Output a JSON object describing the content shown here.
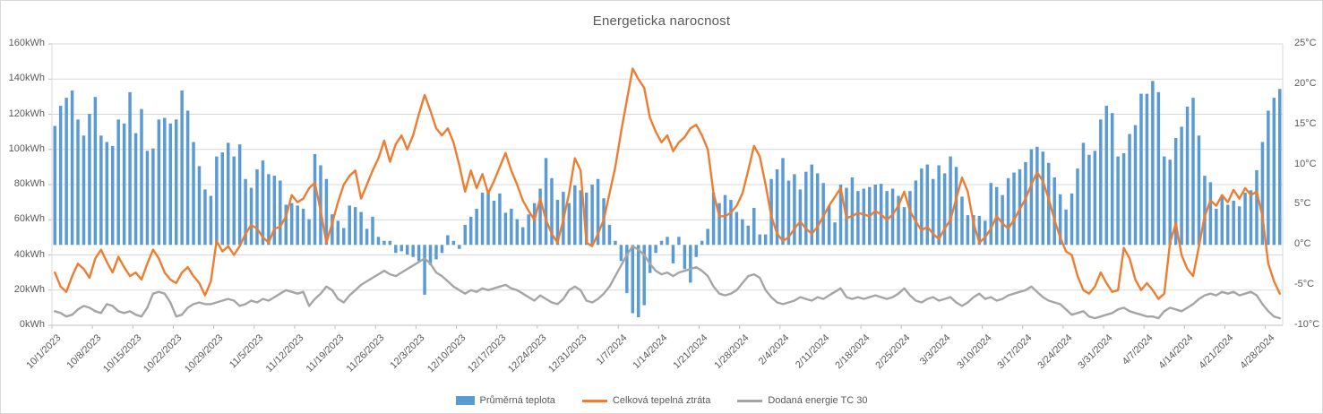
{
  "chart_data": {
    "type": "combo-bar-line",
    "title": "Energeticka narocnost",
    "x_axis": {
      "frequency": "daily",
      "start": "10/1/2023",
      "end": "4/30/2024",
      "n_points": 213,
      "tick_labels": [
        "10/1/2023",
        "10/8/2023",
        "10/15/2023",
        "10/22/2023",
        "10/29/2023",
        "11/5/2023",
        "11/12/2023",
        "11/19/2023",
        "11/26/2023",
        "12/3/2023",
        "12/10/2023",
        "12/17/2023",
        "12/24/2023",
        "12/31/2023",
        "1/7/2024",
        "1/14/2024",
        "1/21/2024",
        "1/28/2024",
        "2/4/2024",
        "2/11/2024",
        "2/18/2024",
        "2/25/2024",
        "3/3/2024",
        "3/10/2024",
        "3/17/2024",
        "3/24/2024",
        "3/31/2024",
        "4/7/2024",
        "4/14/2024",
        "4/21/2024",
        "4/28/2024"
      ],
      "tick_step_days": 7
    },
    "y_left": {
      "unit": "kWh",
      "min": 0,
      "max": 160,
      "tick_step": 20,
      "gridlines": true
    },
    "y_right": {
      "unit": "°C",
      "min": -10,
      "max": 25,
      "tick_step": 5,
      "gridlines": false
    },
    "colors": {
      "bar": "#5b9bd5",
      "loss_line": "#ed7d31",
      "energy_line": "#a5a5a5",
      "grid": "#d9d9d9",
      "axis": "#bfbfbf",
      "text": "#595959"
    },
    "legend_position": "bottom",
    "series": [
      {
        "name": "Průměrná teplota",
        "type": "bar",
        "axis": "right",
        "unit": "°C",
        "values": [
          14.8,
          17.3,
          18.3,
          19.2,
          15.6,
          13.6,
          16.3,
          18.4,
          13.6,
          12.8,
          12.3,
          15.6,
          15.1,
          19.0,
          13.9,
          16.9,
          11.7,
          12.0,
          15.6,
          15.8,
          15.1,
          15.6,
          19.2,
          16.7,
          12.8,
          9.8,
          6.9,
          6.1,
          11.0,
          11.5,
          12.7,
          11.0,
          12.5,
          8.2,
          7.1,
          9.4,
          10.5,
          8.8,
          8.6,
          8.0,
          5.0,
          5.2,
          4.9,
          4.5,
          3.2,
          11.3,
          9.9,
          8.2,
          3.8,
          3.0,
          2.1,
          4.9,
          4.7,
          4.1,
          2.0,
          3.5,
          1.0,
          0.5,
          0.5,
          -1.0,
          -0.8,
          -1.2,
          -1.5,
          -2.0,
          -6.2,
          -2.5,
          -1.8,
          -1.0,
          1.2,
          0.5,
          -0.5,
          2.5,
          3.5,
          4.5,
          6.5,
          6.8,
          5.5,
          6.4,
          4.0,
          4.5,
          3.2,
          2.2,
          3.8,
          5.2,
          7.0,
          10.8,
          8.3,
          5.6,
          6.6,
          5.2,
          7.4,
          6.8,
          6.5,
          7.5,
          8.2,
          5.8,
          2.5,
          0.5,
          -2.0,
          -6.0,
          -8.5,
          -9.0,
          -7.5,
          -3.5,
          -1.0,
          0.5,
          1.0,
          -2.3,
          1.0,
          -3.0,
          -4.7,
          -1.5,
          0.5,
          2.0,
          6.5,
          5.2,
          6.2,
          5.6,
          4.1,
          3.2,
          2.4,
          4.6,
          1.3,
          1.3,
          8.2,
          9.4,
          10.8,
          8.0,
          8.8,
          6.9,
          9.1,
          10.0,
          8.9,
          7.7,
          4.9,
          2.8,
          7.5,
          7.1,
          8.4,
          6.7,
          7.0,
          7.2,
          7.5,
          7.6,
          6.7,
          7.0,
          6.1,
          4.7,
          6.7,
          8.0,
          9.5,
          10.0,
          8.2,
          9.9,
          8.9,
          11.0,
          9.7,
          6.0,
          3.7,
          3.7,
          3.6,
          3.0,
          7.7,
          7.2,
          6.2,
          8.3,
          9.0,
          9.4,
          10.3,
          11.9,
          12.2,
          11.6,
          10.2,
          8.4,
          6.3,
          4.4,
          6.4,
          9.5,
          12.7,
          11.2,
          11.7,
          15.6,
          17.3,
          16.4,
          11.0,
          11.4,
          13.8,
          14.9,
          18.8,
          18.8,
          20.4,
          19.0,
          11.0,
          10.6,
          13.3,
          14.7,
          17.2,
          18.3,
          13.6,
          8.6,
          7.8,
          4.5,
          6.2,
          5.0,
          5.5,
          4.8,
          6.5,
          6.8,
          9.3,
          12.8,
          16.7,
          18.3,
          19.4
        ]
      },
      {
        "name": "Celková tepelná ztráta",
        "type": "line",
        "axis": "left",
        "unit": "kWh",
        "values": [
          30,
          22,
          19,
          28,
          35,
          32,
          27,
          38,
          43,
          36,
          30,
          39,
          33,
          28,
          30,
          26,
          35,
          43,
          38,
          30,
          26,
          24,
          30,
          33,
          28,
          24,
          17,
          25,
          48,
          42,
          45,
          40,
          45,
          52,
          57,
          55,
          50,
          47,
          55,
          56,
          62,
          74,
          70,
          72,
          78,
          81,
          65,
          47,
          58,
          70,
          80,
          85,
          88,
          72,
          80,
          88,
          95,
          105,
          93,
          103,
          108,
          100,
          108,
          120,
          131,
          122,
          112,
          108,
          112,
          104,
          91,
          76,
          88,
          78,
          86,
          75,
          82,
          90,
          98,
          88,
          80,
          71,
          65,
          60,
          72,
          60,
          52,
          47,
          60,
          75,
          95,
          88,
          47,
          45,
          52,
          60,
          75,
          90,
          110,
          128,
          146,
          140,
          135,
          118,
          110,
          104,
          108,
          99,
          104,
          107,
          112,
          114,
          108,
          100,
          75,
          62,
          62,
          64,
          68,
          75,
          88,
          102,
          96,
          80,
          62,
          52,
          48,
          50,
          55,
          59,
          55,
          52,
          56,
          62,
          68,
          73,
          78,
          61,
          62,
          64,
          63,
          62,
          65,
          63,
          60,
          63,
          68,
          76,
          65,
          59,
          54,
          56,
          52,
          49,
          55,
          60,
          72,
          84,
          76,
          58,
          47,
          50,
          55,
          62,
          58,
          55,
          60,
          66,
          72,
          80,
          87,
          82,
          72,
          60,
          50,
          42,
          40,
          28,
          20,
          18,
          22,
          30,
          24,
          19,
          20,
          44,
          38,
          26,
          20,
          24,
          20,
          15,
          18,
          47,
          58,
          40,
          32,
          28,
          45,
          62,
          71,
          68,
          74,
          70,
          77,
          72,
          78,
          74,
          76,
          62,
          35,
          25,
          18
        ]
      },
      {
        "name": "Dodaná energie TC 30",
        "type": "line",
        "axis": "left",
        "unit": "kWh",
        "values": [
          8,
          7,
          5,
          6,
          9,
          11,
          10,
          8,
          7,
          12,
          11,
          8,
          7,
          8,
          6,
          5,
          10,
          18,
          19,
          18,
          13,
          5,
          6,
          10,
          12,
          13,
          12,
          12,
          13,
          14,
          15,
          14,
          11,
          12,
          14,
          13,
          15,
          14,
          16,
          18,
          20,
          19,
          18,
          19,
          11,
          15,
          18,
          22,
          20,
          15,
          13,
          17,
          20,
          23,
          25,
          27,
          29,
          31,
          29,
          28,
          30,
          32,
          34,
          36,
          38,
          35,
          30,
          28,
          25,
          22,
          20,
          18,
          20,
          19,
          21,
          20,
          21,
          22,
          23,
          21,
          20,
          18,
          16,
          14,
          17,
          15,
          13,
          12,
          15,
          20,
          22,
          20,
          14,
          13,
          15,
          18,
          22,
          28,
          34,
          40,
          45,
          43,
          40,
          35,
          31,
          29,
          30,
          28,
          30,
          31,
          32,
          33,
          31,
          28,
          22,
          18,
          17,
          18,
          20,
          24,
          28,
          29,
          27,
          20,
          16,
          13,
          12,
          13,
          14,
          16,
          15,
          14,
          16,
          15,
          17,
          19,
          21,
          16,
          15,
          16,
          15,
          16,
          17,
          16,
          15,
          16,
          18,
          21,
          17,
          14,
          13,
          15,
          16,
          14,
          15,
          16,
          13,
          11,
          13,
          16,
          18,
          15,
          16,
          14,
          15,
          17,
          18,
          19,
          20,
          22,
          19,
          16,
          14,
          13,
          12,
          9,
          6,
          7,
          8,
          5,
          4,
          5,
          6,
          7,
          9,
          10,
          8,
          7,
          6,
          5,
          5,
          4,
          8,
          10,
          9,
          8,
          10,
          12,
          15,
          17,
          18,
          17,
          19,
          18,
          19,
          17,
          18,
          19,
          17,
          12,
          8,
          5,
          4
        ]
      }
    ]
  }
}
